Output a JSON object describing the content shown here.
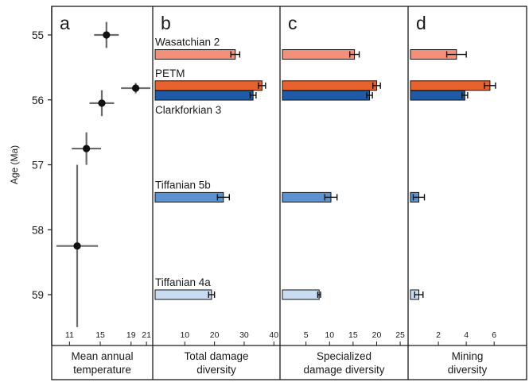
{
  "chart_data": {
    "type": "bar",
    "ylabel": "Age (Ma)",
    "age_axis": {
      "ticks": [
        55,
        56,
        57,
        58,
        59
      ],
      "range": [
        54.8,
        59.3
      ],
      "inverted": false
    },
    "stage_labels": [
      {
        "label": "Wasatchian 2",
        "age": 55.3
      },
      {
        "label": "PETM",
        "age": 55.8
      },
      {
        "label": "Clarkforkian 3",
        "age": 55.93
      },
      {
        "label": "Tiffanian 5b",
        "age": 57.5
      },
      {
        "label": "Tiffanian 4a",
        "age": 59.0
      }
    ],
    "bar_colors": {
      "Wasatchian 2": "#f4907a",
      "PETM": "#e8622d",
      "Clarkforkian 3": "#1f5aa6",
      "Tiffanian 5b": "#5b93d2",
      "Tiffanian 4a": "#c9ddf2"
    },
    "panels": [
      {
        "letter": "a",
        "type": "scatter",
        "xlabel": [
          "Mean annual",
          "temperature"
        ],
        "xticks": [
          11,
          15,
          19,
          21
        ],
        "xlim": [
          9,
          21.4
        ],
        "points": [
          {
            "x": 15.8,
            "y": 55.0,
            "xerr": 1.6,
            "yerr": 0.2
          },
          {
            "x": 19.6,
            "y": 55.82,
            "xerr": 1.9,
            "yerr": 0.08
          },
          {
            "x": 15.2,
            "y": 56.05,
            "xerr": 1.6,
            "yerr": 0.2
          },
          {
            "x": 13.2,
            "y": 56.75,
            "xerr": 1.9,
            "yerr": 0.25
          },
          {
            "x": 12.0,
            "y": 58.25,
            "xerr": 2.7,
            "yerr": 1.25
          }
        ]
      },
      {
        "letter": "b",
        "type": "bar",
        "xlabel": [
          "Total damage",
          "diversity"
        ],
        "xticks": [
          10,
          20,
          30,
          40
        ],
        "xlim": [
          0,
          41
        ],
        "bars": [
          {
            "stage": "Wasatchian 2",
            "age": 55.3,
            "value": 27,
            "err": 1.5
          },
          {
            "stage": "PETM",
            "age": 55.78,
            "value": 36,
            "err": 1.2
          },
          {
            "stage": "Clarkforkian 3",
            "age": 55.93,
            "value": 33,
            "err": 1.0
          },
          {
            "stage": "Tiffanian 5b",
            "age": 57.5,
            "value": 23,
            "err": 2.0
          },
          {
            "stage": "Tiffanian 4a",
            "age": 59.0,
            "value": 19,
            "err": 1.0
          }
        ]
      },
      {
        "letter": "c",
        "type": "bar",
        "xlabel": [
          "Specialized",
          "damage diversity"
        ],
        "xticks": [
          5,
          10,
          15,
          20,
          25
        ],
        "xlim": [
          0,
          26
        ],
        "bars": [
          {
            "stage": "Wasatchian 2",
            "age": 55.3,
            "value": 15.3,
            "err": 1.0
          },
          {
            "stage": "PETM",
            "age": 55.78,
            "value": 20,
            "err": 0.8
          },
          {
            "stage": "Clarkforkian 3",
            "age": 55.93,
            "value": 18.5,
            "err": 0.6
          },
          {
            "stage": "Tiffanian 5b",
            "age": 57.5,
            "value": 10.3,
            "err": 1.3
          },
          {
            "stage": "Tiffanian 4a",
            "age": 59.0,
            "value": 7.8,
            "err": 0.3
          }
        ]
      },
      {
        "letter": "d",
        "type": "bar",
        "xlabel": [
          "Mining",
          "diversity"
        ],
        "xticks": [
          2,
          4,
          6
        ],
        "xlim": [
          0,
          8.1
        ],
        "bars": [
          {
            "stage": "Wasatchian 2",
            "age": 55.3,
            "value": 3.3,
            "err": 0.7
          },
          {
            "stage": "PETM",
            "age": 55.78,
            "value": 5.7,
            "err": 0.4
          },
          {
            "stage": "Clarkforkian 3",
            "age": 55.93,
            "value": 3.9,
            "err": 0.2
          },
          {
            "stage": "Tiffanian 5b",
            "age": 57.5,
            "value": 0.6,
            "err": 0.4
          },
          {
            "stage": "Tiffanian 4a",
            "age": 59.0,
            "value": 0.6,
            "err": 0.3
          }
        ]
      }
    ]
  }
}
